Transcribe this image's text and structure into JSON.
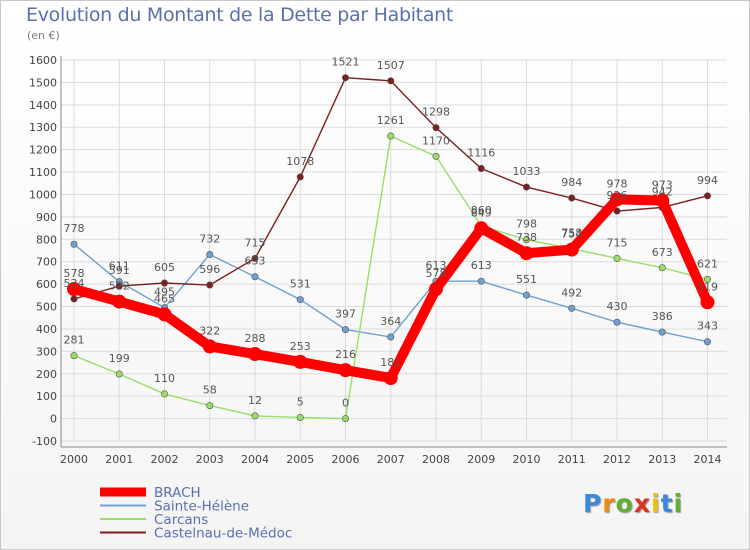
{
  "chart_data": {
    "type": "line",
    "title": "Evolution du Montant de la Dette par Habitant",
    "subtitle": "(en €)",
    "x": [
      "2000",
      "2001",
      "2002",
      "2003",
      "2004",
      "2005",
      "2006",
      "2007",
      "2008",
      "2009",
      "2010",
      "2011",
      "2012",
      "2013",
      "2014"
    ],
    "ylim": [
      -100,
      1600
    ],
    "yticks": [
      -100,
      0,
      100,
      200,
      300,
      400,
      500,
      600,
      700,
      800,
      900,
      1000,
      1100,
      1200,
      1300,
      1400,
      1500,
      1600
    ],
    "grid": true,
    "legend_position": "bottom-left",
    "series": [
      {
        "name": "BRACH",
        "color": "#ff0000",
        "values": [
          578,
          522,
          465,
          322,
          288,
          253,
          216,
          181,
          578,
          849,
          738,
          754,
          978,
          973,
          519
        ]
      },
      {
        "name": "Sainte-Hélène",
        "color": "#6fa0d0",
        "values": [
          778,
          611,
          495,
          732,
          633,
          531,
          397,
          364,
          613,
          613,
          551,
          492,
          430,
          386,
          343
        ]
      },
      {
        "name": "Carcans",
        "color": "#99dd66",
        "values": [
          281,
          199,
          110,
          58,
          12,
          5,
          0,
          1261,
          1170,
          860,
          798,
          758,
          715,
          673,
          621
        ]
      },
      {
        "name": "Castelnau-de-Médoc",
        "color": "#7a2020",
        "values": [
          534,
          591,
          605,
          596,
          715,
          1078,
          1521,
          1507,
          1298,
          1116,
          1033,
          984,
          926,
          942,
          994
        ]
      }
    ]
  },
  "logo": {
    "letters": [
      "P",
      "r",
      "o",
      "x",
      "i",
      "t",
      "i"
    ],
    "colors": [
      "#3a8ad8",
      "#f08a10",
      "#60b030",
      "#e03020",
      "#f0c010",
      "#3a8ad8",
      "#60b030"
    ]
  }
}
